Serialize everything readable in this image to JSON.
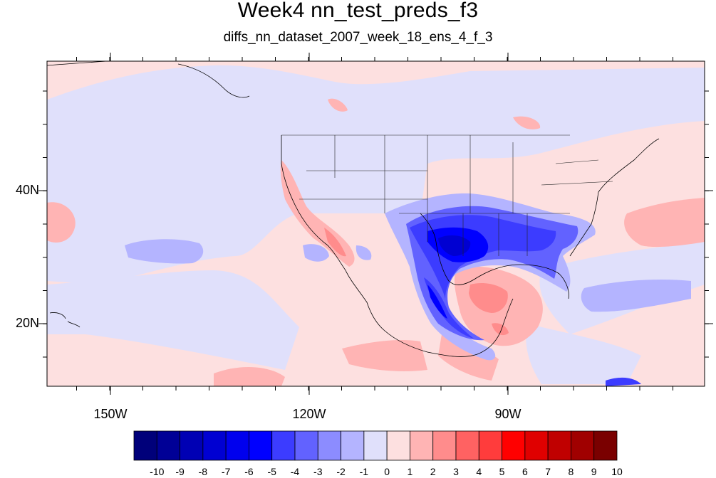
{
  "title": "Week4 nn_test_preds_f3",
  "subtitle": "diffs_nn_dataset_2007_week_18_ens_4_f_3",
  "axes": {
    "lat_labels": [
      "40N",
      "20N"
    ],
    "lon_labels": [
      "150W",
      "120W",
      "90W"
    ]
  },
  "colorbar": {
    "labels": [
      "-10",
      "-9",
      "-8",
      "-7",
      "-6",
      "-5",
      "-4",
      "-3",
      "-2",
      "-1",
      "0",
      "1",
      "2",
      "3",
      "4",
      "5",
      "6",
      "7",
      "8",
      "9",
      "10"
    ],
    "colors": [
      "#00007a",
      "#000096",
      "#0000b4",
      "#0000d2",
      "#0000ee",
      "#0000ff",
      "#3c3cff",
      "#6262ff",
      "#8c8cff",
      "#b4b4ff",
      "#e0e0fb",
      "#fde0e0",
      "#ffb4b4",
      "#ff8c8c",
      "#ff6262",
      "#ff3c3c",
      "#ff0000",
      "#e00000",
      "#c00000",
      "#a00000",
      "#7a0000"
    ]
  }
}
